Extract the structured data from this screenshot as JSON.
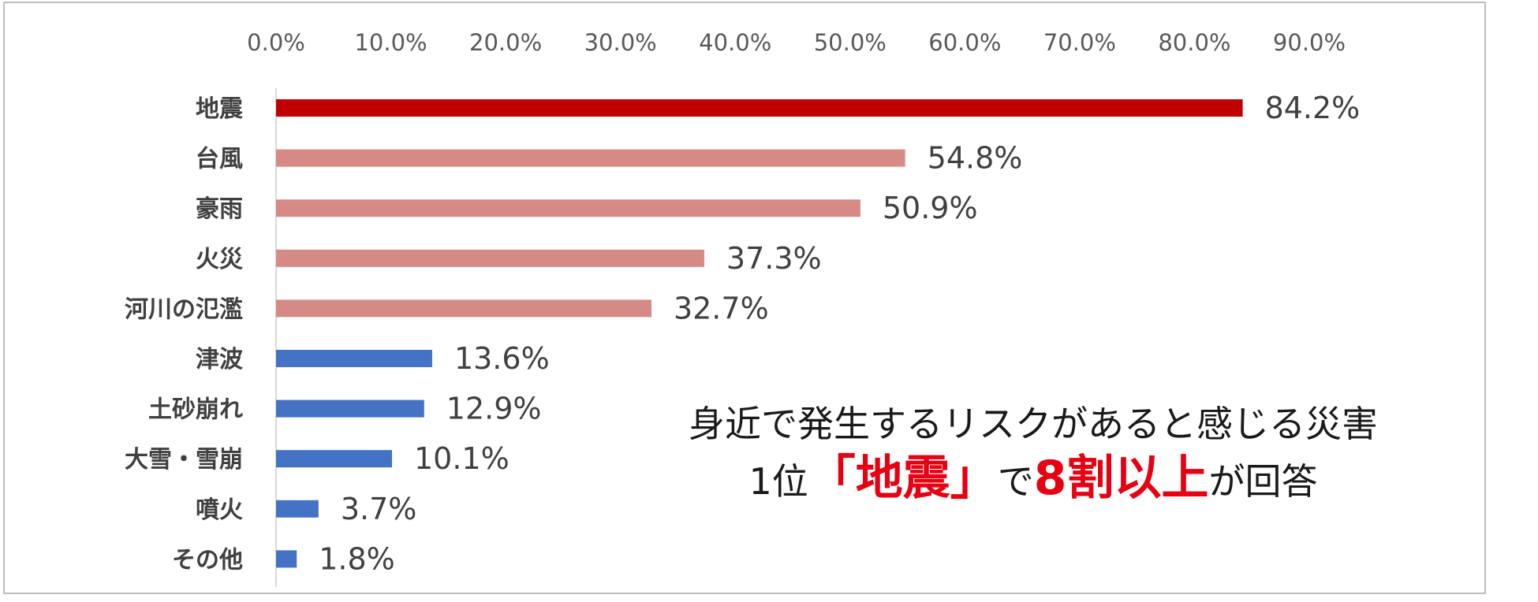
{
  "chart_data": {
    "type": "bar",
    "orientation": "horizontal",
    "categories": [
      "地震",
      "台風",
      "豪雨",
      "火災",
      "河川の氾濫",
      "津波",
      "土砂崩れ",
      "大雪・雪崩",
      "噴火",
      "その他"
    ],
    "values": [
      84.2,
      54.8,
      50.9,
      37.3,
      32.7,
      13.6,
      12.9,
      10.1,
      3.7,
      1.8
    ],
    "value_labels": [
      "84.2%",
      "54.8%",
      "50.9%",
      "37.3%",
      "32.7%",
      "13.6%",
      "12.9%",
      "10.1%",
      "3.7%",
      "1.8%"
    ],
    "bar_colors": [
      "#c00000",
      "#d68a86",
      "#d68a86",
      "#d68a86",
      "#d68a86",
      "#4472c4",
      "#4472c4",
      "#4472c4",
      "#4472c4",
      "#4472c4"
    ],
    "xlim": [
      0,
      90
    ],
    "xticks": [
      0,
      10,
      20,
      30,
      40,
      50,
      60,
      70,
      80,
      90
    ],
    "xtick_labels": [
      "0.0%",
      "10.0%",
      "20.0%",
      "30.0%",
      "40.0%",
      "50.0%",
      "60.0%",
      "70.0%",
      "80.0%",
      "90.0%"
    ],
    "x_axis_position": "top",
    "grid": false,
    "legend": "none",
    "title": "",
    "xlabel": "",
    "ylabel": ""
  },
  "callout": {
    "line1": "身近で発生するリスクがあると感じる災害",
    "line2_prefix": "1位",
    "line2_highlight1": "「地震」",
    "line2_mid": "で",
    "line2_highlight2": "8割以上",
    "line2_suffix": "が回答",
    "highlight_color": "#e60012"
  }
}
